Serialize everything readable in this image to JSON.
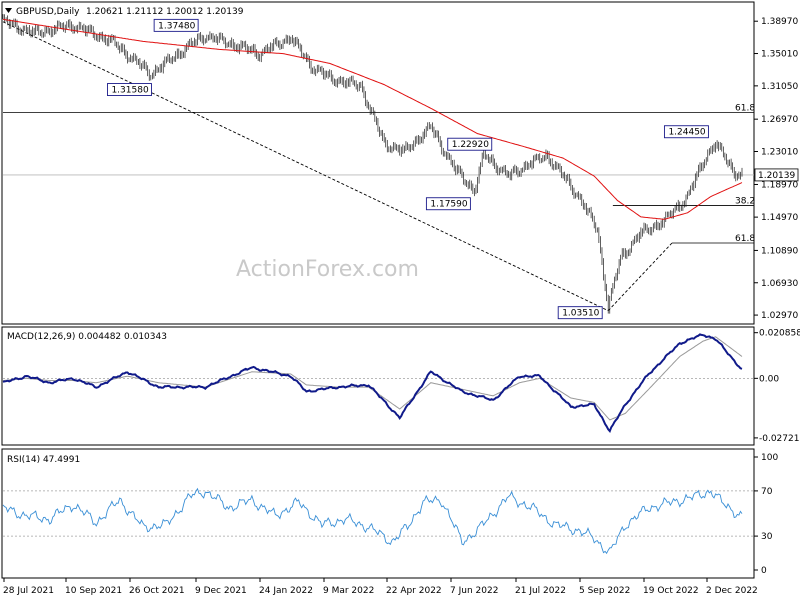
{
  "header": {
    "symbol": "GBPUSD,Daily",
    "ohlc": "1.20621 1.21112 1.20012 1.20139",
    "macd_label": "MACD(12,26,9) 0.004482 0.010343",
    "rsi_label": "RSI(14) 47.4991",
    "watermark": "ActionForex.com"
  },
  "colors": {
    "candle": "#1a1a1a",
    "ma": "#e01010",
    "macd_line": "#101a8a",
    "macd_signal": "#9a9a9a",
    "rsi_line": "#3a8fd6",
    "trendline": "#000000",
    "border": "#000000"
  },
  "chart_data": [
    {
      "type": "candlestick",
      "title": "GBPUSD,Daily",
      "ylim": [
        1.02,
        1.412
      ],
      "y_ticks": [
        "1.38970",
        "1.35010",
        "1.31050",
        "1.26970",
        "1.23010",
        "1.18970",
        "1.14970",
        "1.10890",
        "1.06930",
        "1.02970"
      ],
      "y_tick_values": [
        1.3897,
        1.3501,
        1.3105,
        1.2697,
        1.2301,
        1.1897,
        1.1497,
        1.1089,
        1.0693,
        1.0297
      ],
      "x_ticks": [
        "28 Jul 2021",
        "10 Sep 2021",
        "26 Oct 2021",
        "9 Dec 2021",
        "24 Jan 2022",
        "9 Mar 2022",
        "22 Apr 2022",
        "7 Jun 2022",
        "21 Jul 2022",
        "5 Sep 2022",
        "19 Oct 2022",
        "2 Dec 2022"
      ],
      "current_price": "1.20139",
      "current_price_value": 1.20139,
      "annotations": [
        {
          "label": "1.37480",
          "bar": 128,
          "price": 1.3748
        },
        {
          "label": "1.31580",
          "bar": 98,
          "price": 1.3158
        },
        {
          "label": "1.22920",
          "bar": 309,
          "price": 1.2292
        },
        {
          "label": "1.17590",
          "bar": 303,
          "price": 1.1759
        },
        {
          "label": "1.03510",
          "bar": 389,
          "price": 1.0351
        },
        {
          "label": "1.24450",
          "bar": 456,
          "price": 1.2445
        }
      ],
      "fib_levels": [
        {
          "label": "61.8",
          "price": 1.278,
          "start_bar": 0
        },
        {
          "label": "38.2",
          "price": 1.164,
          "start_bar": 392
        },
        {
          "label": "61.8",
          "price": 1.118,
          "start_bar": 430
        }
      ],
      "trendlines": [
        {
          "from_bar": 0,
          "from_price": 1.389,
          "to_bar": 389,
          "to_price": 1.0351
        },
        {
          "from_bar": 389,
          "from_price": 1.0351,
          "to_bar": 430,
          "to_price": 1.118
        }
      ],
      "close_anchors": [
        [
          0,
          1.39
        ],
        [
          20,
          1.375
        ],
        [
          45,
          1.385
        ],
        [
          70,
          1.365
        ],
        [
          95,
          1.325
        ],
        [
          120,
          1.36
        ],
        [
          130,
          1.372
        ],
        [
          150,
          1.36
        ],
        [
          165,
          1.35
        ],
        [
          185,
          1.37
        ],
        [
          198,
          1.335
        ],
        [
          210,
          1.32
        ],
        [
          230,
          1.31
        ],
        [
          245,
          1.24
        ],
        [
          258,
          1.23
        ],
        [
          275,
          1.26
        ],
        [
          290,
          1.21
        ],
        [
          303,
          1.182
        ],
        [
          309,
          1.226
        ],
        [
          325,
          1.2
        ],
        [
          338,
          1.215
        ],
        [
          350,
          1.225
        ],
        [
          370,
          1.175
        ],
        [
          382,
          1.135
        ],
        [
          389,
          1.04
        ],
        [
          397,
          1.1
        ],
        [
          410,
          1.13
        ],
        [
          425,
          1.145
        ],
        [
          440,
          1.175
        ],
        [
          452,
          1.225
        ],
        [
          458,
          1.24
        ],
        [
          470,
          1.205
        ],
        [
          475,
          1.2014
        ]
      ],
      "ma_anchors": [
        [
          0,
          1.392
        ],
        [
          40,
          1.38
        ],
        [
          90,
          1.365
        ],
        [
          140,
          1.355
        ],
        [
          180,
          1.35
        ],
        [
          210,
          1.338
        ],
        [
          245,
          1.312
        ],
        [
          275,
          1.283
        ],
        [
          305,
          1.252
        ],
        [
          335,
          1.236
        ],
        [
          360,
          1.222
        ],
        [
          380,
          1.2
        ],
        [
          395,
          1.17
        ],
        [
          410,
          1.15
        ],
        [
          425,
          1.147
        ],
        [
          440,
          1.155
        ],
        [
          455,
          1.175
        ],
        [
          475,
          1.192
        ]
      ]
    },
    {
      "type": "line",
      "title": "MACD(12,26,9) 0.004482 0.010343",
      "ylim": [
        -0.03,
        0.023
      ],
      "y_ticks": [
        "0.020858",
        "0.00",
        "-0.027213"
      ],
      "y_tick_values": [
        0.020858,
        0.0,
        -0.027213
      ],
      "series": [
        {
          "anchors": [
            [
              0,
              -0.002
            ],
            [
              15,
              0.001
            ],
            [
              30,
              -0.002
            ],
            [
              45,
              0.0
            ],
            [
              60,
              -0.004
            ],
            [
              80,
              0.003
            ],
            [
              100,
              -0.004
            ],
            [
              115,
              -0.004
            ],
            [
              130,
              -0.004
            ],
            [
              160,
              0.005
            ],
            [
              185,
              0.001
            ],
            [
              195,
              -0.006
            ],
            [
              215,
              -0.004
            ],
            [
              235,
              -0.003
            ],
            [
              255,
              -0.018
            ],
            [
              275,
              0.003
            ],
            [
              295,
              -0.006
            ],
            [
              315,
              -0.01
            ],
            [
              332,
              0.001
            ],
            [
              345,
              0.001
            ],
            [
              365,
              -0.013
            ],
            [
              380,
              -0.012
            ],
            [
              390,
              -0.024
            ],
            [
              400,
              -0.012
            ],
            [
              415,
              0.002
            ],
            [
              435,
              0.016
            ],
            [
              450,
              0.02
            ],
            [
              458,
              0.018
            ],
            [
              475,
              0.004
            ]
          ]
        },
        {
          "anchors": [
            [
              0,
              -0.001
            ],
            [
              15,
              0.0
            ],
            [
              30,
              -0.001
            ],
            [
              45,
              -0.001
            ],
            [
              60,
              -0.002
            ],
            [
              80,
              0.001
            ],
            [
              100,
              -0.002
            ],
            [
              115,
              -0.003
            ],
            [
              130,
              -0.004
            ],
            [
              160,
              0.003
            ],
            [
              185,
              0.002
            ],
            [
              195,
              -0.003
            ],
            [
              215,
              -0.004
            ],
            [
              235,
              -0.004
            ],
            [
              255,
              -0.014
            ],
            [
              275,
              -0.002
            ],
            [
              295,
              -0.005
            ],
            [
              315,
              -0.008
            ],
            [
              332,
              -0.002
            ],
            [
              345,
              0.0
            ],
            [
              365,
              -0.009
            ],
            [
              380,
              -0.011
            ],
            [
              390,
              -0.019
            ],
            [
              400,
              -0.016
            ],
            [
              415,
              -0.005
            ],
            [
              435,
              0.01
            ],
            [
              450,
              0.017
            ],
            [
              458,
              0.019
            ],
            [
              475,
              0.01
            ]
          ]
        }
      ]
    },
    {
      "type": "line",
      "title": "RSI(14) 47.4991",
      "ylim": [
        0,
        100
      ],
      "y_ticks": [
        "100",
        "70",
        "30",
        "0"
      ],
      "y_tick_values": [
        100,
        70,
        30,
        0
      ],
      "levels": [
        70,
        30
      ],
      "series": [
        {
          "anchors": [
            [
              0,
              55
            ],
            [
              15,
              48
            ],
            [
              30,
              45
            ],
            [
              45,
              58
            ],
            [
              60,
              42
            ],
            [
              75,
              62
            ],
            [
              90,
              38
            ],
            [
              105,
              40
            ],
            [
              120,
              65
            ],
            [
              130,
              70
            ],
            [
              145,
              55
            ],
            [
              160,
              62
            ],
            [
              175,
              48
            ],
            [
              190,
              60
            ],
            [
              205,
              40
            ],
            [
              220,
              45
            ],
            [
              235,
              38
            ],
            [
              250,
              25
            ],
            [
              260,
              38
            ],
            [
              270,
              60
            ],
            [
              282,
              62
            ],
            [
              295,
              25
            ],
            [
              305,
              35
            ],
            [
              315,
              50
            ],
            [
              325,
              65
            ],
            [
              340,
              55
            ],
            [
              355,
              40
            ],
            [
              370,
              35
            ],
            [
              380,
              28
            ],
            [
              390,
              15
            ],
            [
              400,
              40
            ],
            [
              415,
              55
            ],
            [
              430,
              60
            ],
            [
              445,
              65
            ],
            [
              455,
              70
            ],
            [
              462,
              60
            ],
            [
              475,
              47
            ]
          ]
        }
      ]
    }
  ]
}
